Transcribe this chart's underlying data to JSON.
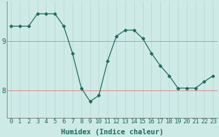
{
  "x": [
    0,
    1,
    2,
    3,
    4,
    5,
    6,
    7,
    8,
    9,
    10,
    11,
    12,
    13,
    14,
    15,
    16,
    17,
    18,
    19,
    20,
    21,
    22,
    23
  ],
  "y": [
    9.3,
    9.3,
    9.3,
    9.55,
    9.55,
    9.55,
    9.3,
    8.75,
    8.05,
    7.78,
    7.9,
    8.6,
    9.1,
    9.22,
    9.22,
    9.05,
    8.75,
    8.5,
    8.3,
    8.05,
    8.05,
    8.05,
    8.18,
    8.3
  ],
  "line_color": "#1a6b5e",
  "marker": "D",
  "marker_size": 2.5,
  "bg_color": "#ceeae7",
  "vgrid_color": "#b8d8d5",
  "hgrid_color": "#e08888",
  "xlabel": "Humidex (Indice chaleur)",
  "xlabel_fontsize": 7.5,
  "ytick_labels": [
    "8",
    "9"
  ],
  "ytick_vals": [
    8,
    9
  ],
  "xlim": [
    -0.5,
    23.5
  ],
  "ylim": [
    7.45,
    9.8
  ],
  "tick_fontsize": 6.5,
  "figsize": [
    3.2,
    2.0
  ],
  "dpi": 100
}
